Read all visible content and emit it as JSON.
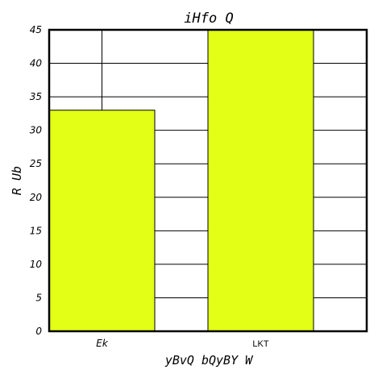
{
  "chart_data": {
    "type": "bar",
    "title": "iHfo Q",
    "xlabel": "yBvQ  bQyBY W",
    "ylabel": "R Ub",
    "categories": [
      "Ek",
      "LKT"
    ],
    "values": [
      33,
      45
    ],
    "ylim": [
      0,
      45
    ],
    "yticks": [
      0,
      5,
      10,
      15,
      20,
      25,
      30,
      35,
      40,
      45
    ],
    "bar_color": "#e3ff15",
    "grid": true
  }
}
